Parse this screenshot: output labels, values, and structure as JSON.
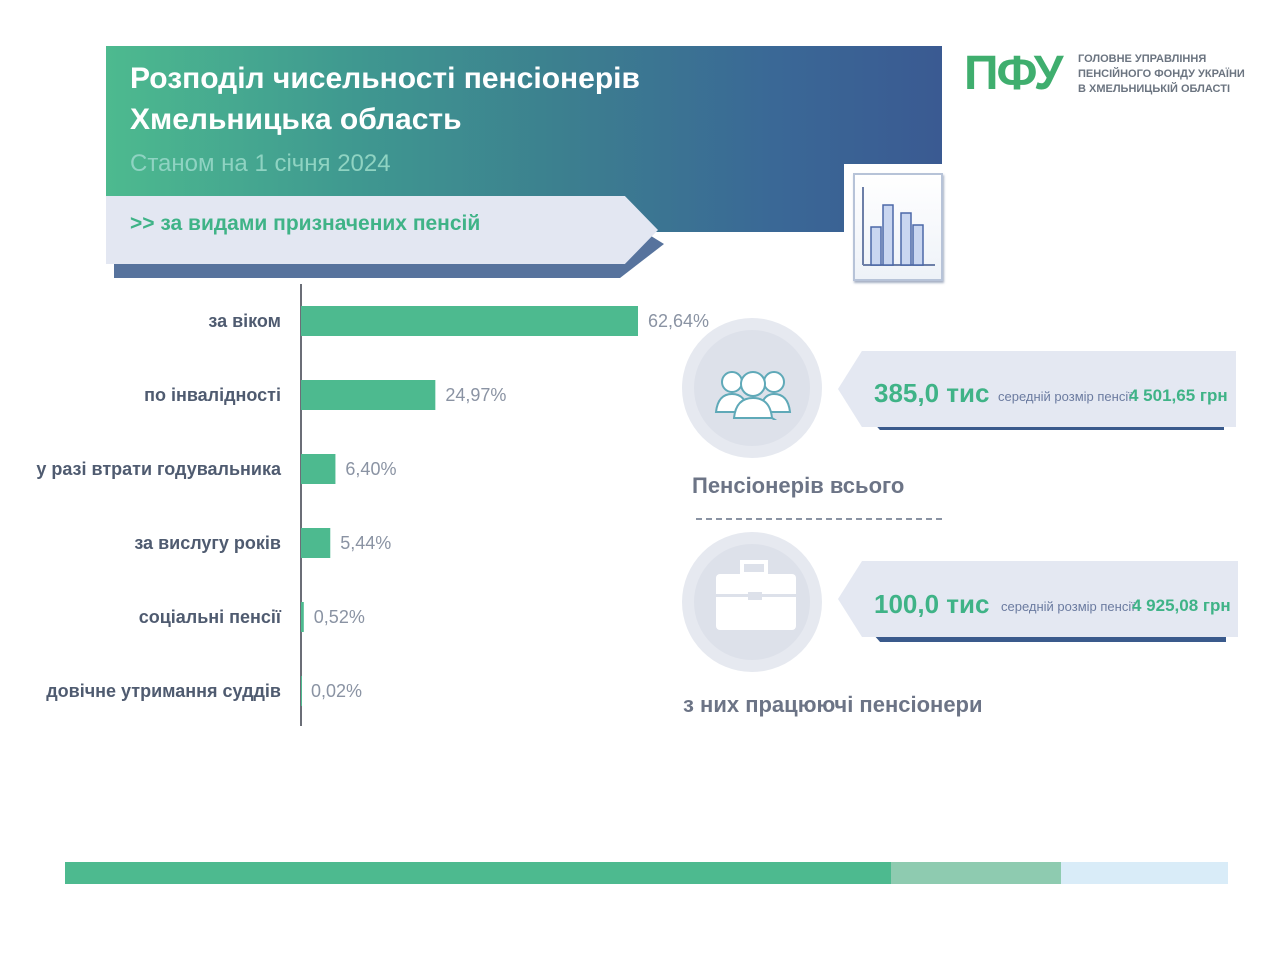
{
  "header": {
    "title_line1": "Розподіл чисельності пенсіонерів",
    "title_line2": "Хмельницька область",
    "subtitle": "Станом на 1 січня 2024",
    "section_label": ">> за видами призначених пенсій"
  },
  "logo": {
    "mark": "ПФУ",
    "line1": "ГОЛОВНЕ УПРАВЛІННЯ",
    "line2": "ПЕНСІЙНОГО ФОНДУ УКРАЇНИ",
    "line3": "В ХМЕЛЬНИЦЬКІЙ ОБЛАСТІ"
  },
  "chart_data": {
    "type": "bar",
    "orientation": "horizontal",
    "categories": [
      "за віком",
      "по інвалідності",
      "у разі втрати годувальника",
      "за вислугу років",
      "соціальні пенсії",
      "довічне утримання суддів"
    ],
    "values": [
      62.64,
      24.97,
      6.4,
      5.44,
      0.52,
      0.02
    ],
    "value_labels": [
      "62,64%",
      "24,97%",
      "6,40%",
      "5,44%",
      "0,52%",
      "0,02%"
    ],
    "bar_color": "#4dba8f",
    "grid": false,
    "legend": "none"
  },
  "stats": {
    "total": {
      "value": "385,0 тис",
      "avg_label": "середній розмір пенсії",
      "avg_value": "4 501,65 грн",
      "caption": "Пенсіонерів всього",
      "icon": "people-group-icon"
    },
    "working": {
      "value": "100,0 тис",
      "avg_label": "середній розмір пенсії",
      "avg_value": "4 925,08 грн",
      "caption": "з них працюючі пенсіонери",
      "icon": "briefcase-icon"
    }
  },
  "colors": {
    "accent_green": "#4dba8f",
    "banner_blue": "#3a5a92",
    "label_gray": "#4f5b70"
  },
  "footer_bar": [
    {
      "share": 0.71,
      "color": "#4dba8f"
    },
    {
      "share": 0.146,
      "color": "#8ecbb0"
    },
    {
      "share": 0.144,
      "color": "#d9ecf8"
    }
  ]
}
